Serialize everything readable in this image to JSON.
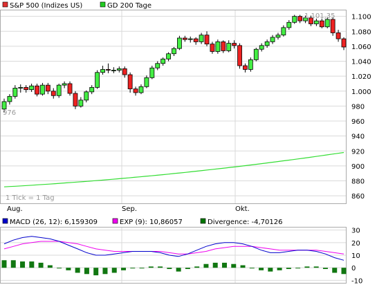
{
  "legend": [
    {
      "label": "S&P 500 (Indizes US)",
      "color": "#e03030"
    },
    {
      "label": "GD 200 Tage",
      "color": "#22cc22"
    }
  ],
  "macd_legend": [
    {
      "label": "MACD (26, 12): 6,159309",
      "color": "#0000cc"
    },
    {
      "label": "EXP (9): 10,86057",
      "color": "#ee00ee"
    },
    {
      "label": "Divergence: -4,70126",
      "color": "#007700"
    }
  ],
  "tick_note": "1 Tick = 1 Tag",
  "annotations": {
    "high_label": "1.101,35",
    "low_label": "976"
  },
  "colors": {
    "up": "#44ee44",
    "down": "#ee2222",
    "ma": "#33dd33",
    "macd": "#0000cc",
    "exp": "#ee00ee",
    "hist": "#117711",
    "grid": "#d9d9d9"
  },
  "chart_data": [
    {
      "type": "candlestick",
      "title": "",
      "x_labels": [
        "Aug.",
        "Sep.",
        "Okt."
      ],
      "y_ticks": [
        860,
        880,
        900,
        920,
        940,
        960,
        980,
        "1.000",
        "1.020",
        "1.040",
        "1.060",
        "1.080",
        "1.100"
      ],
      "ylim": [
        850,
        1108
      ],
      "grid": true,
      "candles": [
        [
          976,
          986,
          972,
          990
        ],
        [
          986,
          993,
          982,
          996
        ],
        [
          993,
          1004,
          990,
          1008
        ],
        [
          1004,
          1005,
          998,
          1009
        ],
        [
          1005,
          1002,
          998,
          1008
        ],
        [
          1002,
          1007,
          999,
          1010
        ],
        [
          1007,
          996,
          993,
          1010
        ],
        [
          996,
          1008,
          994,
          1011
        ],
        [
          1008,
          1000,
          996,
          1011
        ],
        [
          1000,
          994,
          990,
          1004
        ],
        [
          994,
          1008,
          991,
          1010
        ],
        [
          1008,
          1010,
          1004,
          1013
        ],
        [
          1010,
          997,
          994,
          1013
        ],
        [
          997,
          980,
          976,
          1000
        ],
        [
          980,
          988,
          978,
          992
        ],
        [
          988,
          999,
          985,
          1001
        ],
        [
          999,
          1005,
          996,
          1008
        ],
        [
          1005,
          1025,
          1003,
          1028
        ],
        [
          1025,
          1029,
          1022,
          1034
        ],
        [
          1029,
          1028,
          1024,
          1037
        ],
        [
          1028,
          1028,
          1024,
          1032
        ],
        [
          1028,
          1030,
          1025,
          1033
        ],
        [
          1030,
          1022,
          1018,
          1033
        ],
        [
          1022,
          1003,
          998,
          1025
        ],
        [
          1003,
          998,
          994,
          1006
        ],
        [
          998,
          1006,
          996,
          1009
        ],
        [
          1006,
          1018,
          1004,
          1021
        ],
        [
          1018,
          1031,
          1016,
          1034
        ],
        [
          1031,
          1037,
          1028,
          1040
        ],
        [
          1037,
          1043,
          1034,
          1045
        ],
        [
          1043,
          1050,
          1040,
          1052
        ],
        [
          1050,
          1057,
          1047,
          1059
        ],
        [
          1057,
          1071,
          1055,
          1074
        ],
        [
          1071,
          1069,
          1066,
          1074
        ],
        [
          1069,
          1070,
          1065,
          1073
        ],
        [
          1070,
          1066,
          1062,
          1072
        ],
        [
          1066,
          1075,
          1063,
          1078
        ],
        [
          1075,
          1063,
          1060,
          1080
        ],
        [
          1063,
          1053,
          1050,
          1066
        ],
        [
          1053,
          1066,
          1050,
          1069
        ],
        [
          1066,
          1054,
          1051,
          1068
        ],
        [
          1054,
          1064,
          1052,
          1068
        ],
        [
          1064,
          1061,
          1057,
          1068
        ],
        [
          1061,
          1034,
          1030,
          1064
        ],
        [
          1034,
          1029,
          1025,
          1037
        ],
        [
          1029,
          1042,
          1026,
          1045
        ],
        [
          1042,
          1056,
          1040,
          1058
        ],
        [
          1056,
          1061,
          1053,
          1064
        ],
        [
          1061,
          1066,
          1058,
          1069
        ],
        [
          1066,
          1072,
          1063,
          1075
        ],
        [
          1072,
          1075,
          1069,
          1078
        ],
        [
          1075,
          1085,
          1073,
          1088
        ],
        [
          1085,
          1092,
          1082,
          1095
        ],
        [
          1092,
          1100,
          1090,
          1102
        ],
        [
          1100,
          1094,
          1091,
          1102
        ],
        [
          1094,
          1098,
          1091,
          1101
        ],
        [
          1098,
          1090,
          1087,
          1101
        ],
        [
          1090,
          1094,
          1087,
          1097
        ],
        [
          1094,
          1086,
          1084,
          1097
        ],
        [
          1086,
          1096,
          1084,
          1099
        ],
        [
          1096,
          1078,
          1074,
          1099
        ],
        [
          1078,
          1070,
          1066,
          1082
        ],
        [
          1070,
          1059,
          1055,
          1072
        ]
      ],
      "ma200_start": 872,
      "ma200_end": 918
    },
    {
      "type": "macd",
      "y_ticks": [
        30,
        20,
        10,
        0,
        -10
      ],
      "ylim": [
        -12,
        32
      ],
      "macd": [
        19,
        22,
        24,
        25,
        24,
        23,
        21,
        18,
        15,
        12,
        10,
        10,
        11,
        12,
        13,
        13,
        13,
        12,
        10,
        9,
        11,
        14,
        17,
        19,
        20,
        20,
        19,
        17,
        14,
        12,
        12,
        13,
        14,
        14,
        13,
        11,
        8,
        6
      ],
      "exp": [
        15,
        17,
        19,
        20,
        21,
        21,
        21,
        20,
        19,
        17,
        15,
        14,
        13,
        13,
        13,
        13,
        13,
        13,
        12,
        11,
        11,
        12,
        13,
        15,
        16,
        17,
        17,
        17,
        16,
        15,
        14,
        14,
        14,
        14,
        14,
        13,
        12,
        11
      ],
      "hist": [
        6,
        6,
        5,
        5,
        4,
        2,
        0,
        -2,
        -4,
        -5,
        -6,
        -5,
        -4,
        -2,
        0,
        0,
        1,
        1,
        -1,
        -3,
        -1,
        1,
        3,
        4,
        4,
        3,
        2,
        0,
        -2,
        -3,
        -2,
        -1,
        0,
        1,
        1,
        -1,
        -4,
        -5
      ]
    }
  ]
}
